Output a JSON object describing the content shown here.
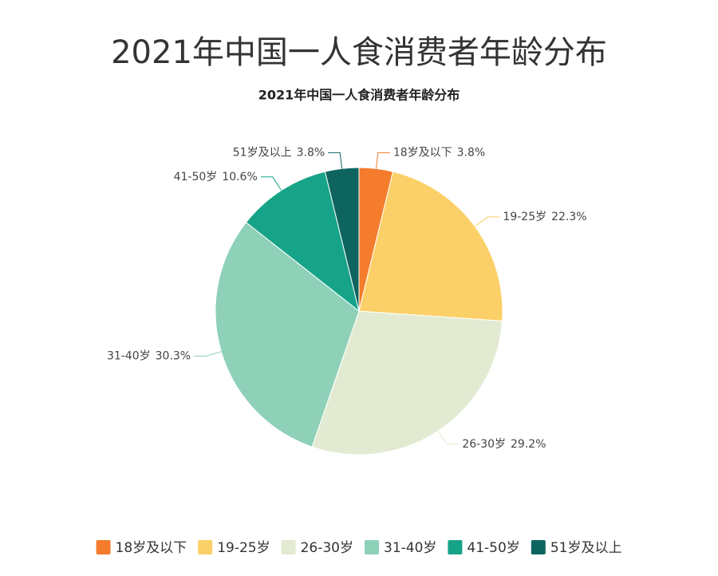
{
  "chart_data": {
    "type": "pie",
    "title": "2021年中国一人食消费者年龄分布",
    "subtitle": "2021年中国一人食消费者年龄分布",
    "categories": [
      "18岁及以下",
      "19-25岁",
      "26-30岁",
      "31-40岁",
      "41-50岁",
      "51岁及以上"
    ],
    "values": [
      3.8,
      22.3,
      29.2,
      30.3,
      10.6,
      3.8
    ],
    "value_labels": [
      "3.8%",
      "22.3%",
      "29.2%",
      "30.3%",
      "10.6%",
      "3.8%"
    ],
    "colors": [
      "#f47c2c",
      "#fbd068",
      "#e2ebd2",
      "#8ed0b8",
      "#17a388",
      "#0e6560"
    ],
    "legend": "bottom"
  }
}
